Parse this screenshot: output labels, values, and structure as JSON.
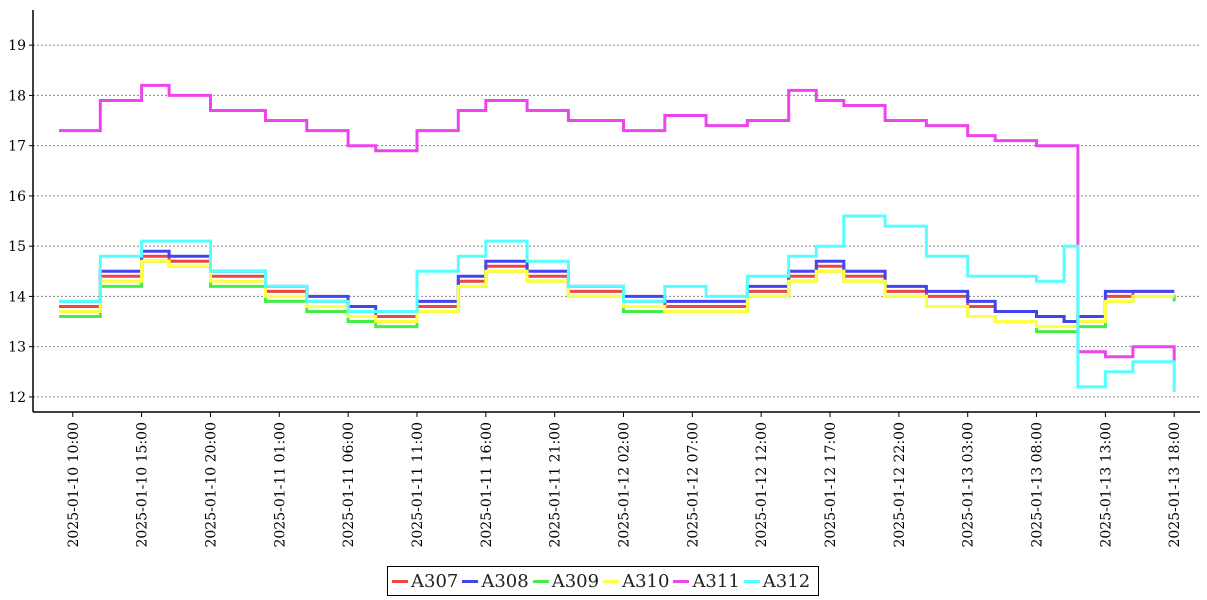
{
  "chart_data": {
    "type": "line",
    "title": "",
    "xlabel": "",
    "ylabel": "",
    "ylim": [
      11.7,
      19.7
    ],
    "yticks": [
      12,
      13,
      14,
      15,
      16,
      17,
      18,
      19
    ],
    "grid": "horizontal dotted",
    "legend_position": "bottom-center",
    "x_ticks": [
      "2025-01-10 10:00",
      "2025-01-10 15:00",
      "2025-01-10 20:00",
      "2025-01-11 01:00",
      "2025-01-11 06:00",
      "2025-01-11 11:00",
      "2025-01-11 16:00",
      "2025-01-11 21:00",
      "2025-01-12 02:00",
      "2025-01-12 07:00",
      "2025-01-12 12:00",
      "2025-01-12 17:00",
      "2025-01-12 22:00",
      "2025-01-13 03:00",
      "2025-01-13 08:00",
      "2025-01-13 13:00",
      "2025-01-13 18:00"
    ],
    "x": [
      "2025-01-10 09:00",
      "2025-01-10 12:00",
      "2025-01-10 15:00",
      "2025-01-10 17:00",
      "2025-01-10 20:00",
      "2025-01-11 00:00",
      "2025-01-11 03:00",
      "2025-01-11 06:00",
      "2025-01-11 08:00",
      "2025-01-11 11:00",
      "2025-01-11 14:00",
      "2025-01-11 16:00",
      "2025-01-11 19:00",
      "2025-01-11 22:00",
      "2025-01-12 02:00",
      "2025-01-12 05:00",
      "2025-01-12 08:00",
      "2025-01-12 11:00",
      "2025-01-12 14:00",
      "2025-01-12 16:00",
      "2025-01-12 18:00",
      "2025-01-12 21:00",
      "2025-01-13 00:00",
      "2025-01-13 03:00",
      "2025-01-13 05:00",
      "2025-01-13 08:00",
      "2025-01-13 10:00",
      "2025-01-13 11:00",
      "2025-01-13 13:00",
      "2025-01-13 15:00",
      "2025-01-13 18:00"
    ],
    "series": [
      {
        "name": "A307",
        "color": "#ee4444",
        "values": [
          13.8,
          14.4,
          14.8,
          14.7,
          14.4,
          14.1,
          13.9,
          13.7,
          13.6,
          13.8,
          14.3,
          14.6,
          14.4,
          14.1,
          13.9,
          13.8,
          13.8,
          14.1,
          14.4,
          14.6,
          14.4,
          14.1,
          14.0,
          13.8,
          13.7,
          13.6,
          13.5,
          13.6,
          14.0,
          14.1,
          14.1
        ]
      },
      {
        "name": "A308",
        "color": "#4444ee",
        "values": [
          13.9,
          14.5,
          14.9,
          14.8,
          14.5,
          14.2,
          14.0,
          13.8,
          13.7,
          13.9,
          14.4,
          14.7,
          14.5,
          14.2,
          14.0,
          13.9,
          13.9,
          14.2,
          14.5,
          14.7,
          14.5,
          14.2,
          14.1,
          13.9,
          13.7,
          13.6,
          13.5,
          13.6,
          14.1,
          14.1,
          14.1
        ]
      },
      {
        "name": "A309",
        "color": "#44ee44",
        "values": [
          13.6,
          14.2,
          14.7,
          14.6,
          14.2,
          13.9,
          13.7,
          13.5,
          13.4,
          13.7,
          14.2,
          14.5,
          14.3,
          14.0,
          13.7,
          13.7,
          13.7,
          14.0,
          14.3,
          14.5,
          14.3,
          14.0,
          13.8,
          13.6,
          13.5,
          13.3,
          13.3,
          13.4,
          13.9,
          14.0,
          13.9
        ]
      },
      {
        "name": "A310",
        "color": "#ffff44",
        "values": [
          13.7,
          14.3,
          14.7,
          14.6,
          14.3,
          14.0,
          13.8,
          13.6,
          13.5,
          13.7,
          14.2,
          14.5,
          14.3,
          14.0,
          13.8,
          13.7,
          13.7,
          14.0,
          14.3,
          14.5,
          14.3,
          14.0,
          13.8,
          13.6,
          13.5,
          13.4,
          13.4,
          13.5,
          13.9,
          14.0,
          14.0
        ]
      },
      {
        "name": "A311",
        "color": "#ee44ee",
        "values": [
          17.3,
          17.9,
          18.2,
          18.0,
          17.7,
          17.5,
          17.3,
          17.0,
          16.9,
          17.3,
          17.7,
          17.9,
          17.7,
          17.5,
          17.3,
          17.6,
          17.4,
          17.5,
          18.1,
          17.9,
          17.8,
          17.5,
          17.4,
          17.2,
          17.1,
          17.0,
          17.0,
          12.9,
          12.8,
          13.0,
          12.7
        ]
      },
      {
        "name": "A312",
        "color": "#55ffff",
        "values": [
          13.9,
          14.8,
          15.1,
          15.1,
          14.5,
          14.2,
          13.9,
          13.7,
          13.7,
          14.5,
          14.8,
          15.1,
          14.7,
          14.2,
          13.9,
          14.2,
          14.0,
          14.4,
          14.8,
          15.0,
          15.6,
          15.4,
          14.8,
          14.4,
          14.4,
          14.3,
          15.0,
          12.2,
          12.5,
          12.7,
          12.1
        ]
      }
    ]
  }
}
